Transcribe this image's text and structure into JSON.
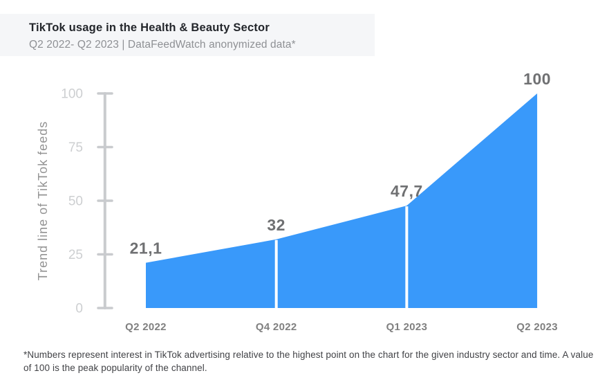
{
  "header": {
    "title": "TikTok usage in the Health & Beauty Sector",
    "subtitle": "Q2 2022- Q2 2023 | DataFeedWatch anonymized data*"
  },
  "footnote": {
    "text": "*Numbers represent interest in TikTok advertising relative to the highest point on the chart for the given industry sector and time. A value of 100 is the peak popularity of the channel."
  },
  "chart_data": {
    "type": "area",
    "categories": [
      "Q2 2022",
      "Q4 2022",
      "Q1 2023",
      "Q2 2023"
    ],
    "values": [
      21.1,
      32,
      47.7,
      100
    ],
    "value_labels": [
      "21,1",
      "32",
      "47,7",
      "100"
    ],
    "title": "TikTok usage in the Health & Beauty Sector",
    "subtitle": "Q2 2022- Q2 2023 | DataFeedWatch anonymized data*",
    "xlabel": "",
    "ylabel": "Trend line of TikTok feeds",
    "ylim": [
      0,
      100
    ],
    "yticks": [
      0,
      25,
      50,
      75,
      100
    ],
    "grid": false,
    "legend": false,
    "segment_dividers": true
  },
  "colors": {
    "area": "#3999FA",
    "divider": "#FFFFFF",
    "axis": "#C9CBCE",
    "tick_label": "#CDCFD1",
    "data_label": "#6F7072",
    "x_label": "#808080",
    "y_title": "#939393",
    "header_bg": "#F5F6F8",
    "title_text": "#23262B",
    "subtitle_text": "#8E9094",
    "footnote_text": "#414246"
  }
}
